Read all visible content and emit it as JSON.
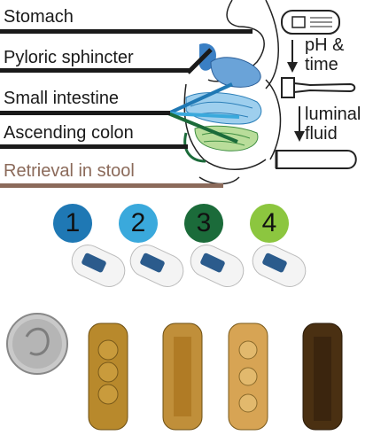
{
  "labels": {
    "stomach": "Stomach",
    "pyloric": "Pyloric sphincter",
    "small_intestine": "Small intestine",
    "ascending_colon": "Ascending colon",
    "retrieval": "Retrieval in stool"
  },
  "notes": {
    "ph_line1": "pH &",
    "ph_line2": "time",
    "luminal_line1": "luminal",
    "luminal_line2": "fluid"
  },
  "capsules": [
    {
      "number": "1",
      "color": "#1f78b4",
      "logo": "envivo"
    },
    {
      "number": "2",
      "color": "#3aa9dc",
      "logo": "envivo"
    },
    {
      "number": "3",
      "color": "#1b6b3a",
      "logo": "envivo"
    },
    {
      "number": "4",
      "color": "#8cc63f",
      "logo": "envivo"
    }
  ],
  "colors": {
    "text": "#1a1a1a",
    "retrieval": "#8b6a5a"
  }
}
